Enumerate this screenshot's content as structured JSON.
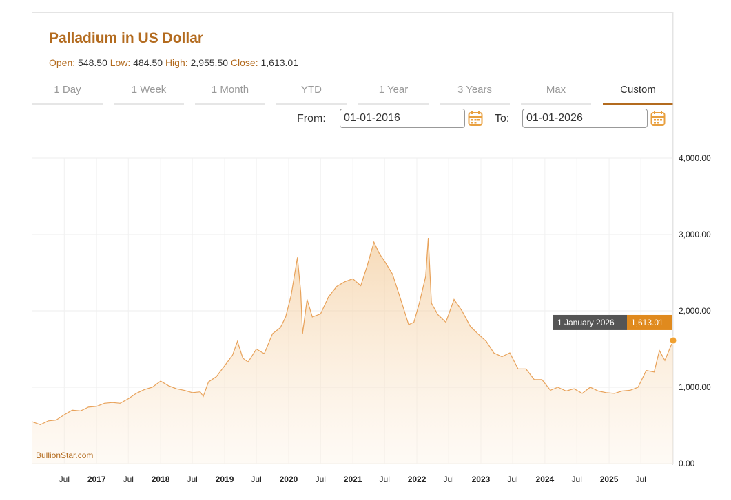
{
  "header": {
    "title": "Palladium in US Dollar",
    "open_label": "Open:",
    "open_value": "548.50",
    "low_label": "Low:",
    "low_value": "484.50",
    "high_label": "High:",
    "high_value": "2,955.50",
    "close_label": "Close:",
    "close_value": "1,613.01"
  },
  "tabs": [
    "1 Day",
    "1 Week",
    "1 Month",
    "YTD",
    "1 Year",
    "3 Years",
    "Max",
    "Custom"
  ],
  "active_tab": "Custom",
  "range": {
    "from_label": "From:",
    "from_value": "01-01-2016",
    "to_label": "To:",
    "to_value": "01-01-2026"
  },
  "tooltip": {
    "date": "1 January 2026",
    "value": "1,613.01"
  },
  "credit": "BullionStar.com",
  "colors": {
    "accent": "#b36b1f",
    "line": "#e8a25a",
    "marker": "#f0a030",
    "tooltip_value_bg": "#e08a1e",
    "tooltip_date_bg": "#555555"
  },
  "chart_data": {
    "type": "area",
    "title": "Palladium in US Dollar",
    "xlabel": "",
    "ylabel": "",
    "x_range": [
      "2016-01-01",
      "2026-01-01"
    ],
    "ylim": [
      0,
      4000
    ],
    "y_ticks": [
      "0.00",
      "1,000.00",
      "2,000.00",
      "3,000.00",
      "4,000.00"
    ],
    "y_tick_values": [
      0,
      1000,
      2000,
      3000,
      4000
    ],
    "x_ticks": [
      {
        "label": "Jul",
        "date": "2016-07-01",
        "bold": false
      },
      {
        "label": "2017",
        "date": "2017-01-01",
        "bold": true
      },
      {
        "label": "Jul",
        "date": "2017-07-01",
        "bold": false
      },
      {
        "label": "2018",
        "date": "2018-01-01",
        "bold": true
      },
      {
        "label": "Jul",
        "date": "2018-07-01",
        "bold": false
      },
      {
        "label": "2019",
        "date": "2019-01-01",
        "bold": true
      },
      {
        "label": "Jul",
        "date": "2019-07-01",
        "bold": false
      },
      {
        "label": "2020",
        "date": "2020-01-01",
        "bold": true
      },
      {
        "label": "Jul",
        "date": "2020-07-01",
        "bold": false
      },
      {
        "label": "2021",
        "date": "2021-01-01",
        "bold": true
      },
      {
        "label": "Jul",
        "date": "2021-07-01",
        "bold": false
      },
      {
        "label": "2022",
        "date": "2022-01-01",
        "bold": true
      },
      {
        "label": "Jul",
        "date": "2022-07-01",
        "bold": false
      },
      {
        "label": "2023",
        "date": "2023-01-01",
        "bold": true
      },
      {
        "label": "Jul",
        "date": "2023-07-01",
        "bold": false
      },
      {
        "label": "2024",
        "date": "2024-01-01",
        "bold": true
      },
      {
        "label": "Jul",
        "date": "2024-07-01",
        "bold": false
      },
      {
        "label": "2025",
        "date": "2025-01-01",
        "bold": true
      },
      {
        "label": "Jul",
        "date": "2025-07-01",
        "bold": false
      }
    ],
    "grid": true,
    "series": [
      {
        "x": [
          "2016-01-01",
          "2016-02-15",
          "2016-04-01",
          "2016-05-15",
          "2016-07-01",
          "2016-08-15",
          "2016-10-01",
          "2016-11-15",
          "2017-01-01",
          "2017-02-15",
          "2017-04-01",
          "2017-05-15",
          "2017-07-01",
          "2017-08-15",
          "2017-10-01",
          "2017-11-15",
          "2018-01-01",
          "2018-02-15",
          "2018-04-01",
          "2018-05-15",
          "2018-07-01",
          "2018-08-15",
          "2018-09-01",
          "2018-10-01",
          "2018-11-15",
          "2019-01-01",
          "2019-02-15",
          "2019-03-15",
          "2019-04-15",
          "2019-05-15",
          "2019-07-01",
          "2019-08-15",
          "2019-10-01",
          "2019-11-15",
          "2019-12-15",
          "2020-01-15",
          "2020-02-20",
          "2020-03-10",
          "2020-03-20",
          "2020-04-15",
          "2020-05-15",
          "2020-07-01",
          "2020-08-15",
          "2020-10-01",
          "2020-11-15",
          "2021-01-01",
          "2021-02-15",
          "2021-03-25",
          "2021-05-01",
          "2021-06-01",
          "2021-07-01",
          "2021-08-15",
          "2021-10-01",
          "2021-11-15",
          "2021-12-15",
          "2022-01-15",
          "2022-02-20",
          "2022-03-07",
          "2022-03-25",
          "2022-05-01",
          "2022-06-15",
          "2022-08-01",
          "2022-09-15",
          "2022-11-01",
          "2022-12-15",
          "2023-02-01",
          "2023-03-15",
          "2023-05-01",
          "2023-06-15",
          "2023-08-01",
          "2023-09-15",
          "2023-11-01",
          "2023-12-15",
          "2024-02-01",
          "2024-03-15",
          "2024-05-01",
          "2024-06-15",
          "2024-08-01",
          "2024-09-15",
          "2024-11-01",
          "2024-12-15",
          "2025-02-01",
          "2025-03-15",
          "2025-05-01",
          "2025-06-15",
          "2025-08-01",
          "2025-09-15",
          "2025-10-15",
          "2025-11-15",
          "2026-01-01"
        ],
        "y": [
          548,
          510,
          560,
          570,
          640,
          700,
          690,
          740,
          750,
          790,
          800,
          790,
          850,
          920,
          970,
          1000,
          1080,
          1020,
          980,
          960,
          930,
          940,
          880,
          1070,
          1140,
          1280,
          1420,
          1600,
          1380,
          1330,
          1500,
          1440,
          1700,
          1780,
          1920,
          2200,
          2700,
          2250,
          1700,
          2150,
          1920,
          1960,
          2180,
          2320,
          2380,
          2420,
          2330,
          2600,
          2900,
          2750,
          2650,
          2480,
          2150,
          1820,
          1850,
          2100,
          2450,
          2955,
          2100,
          1950,
          1850,
          2150,
          2000,
          1800,
          1700,
          1600,
          1450,
          1400,
          1450,
          1240,
          1240,
          1100,
          1100,
          960,
          1000,
          950,
          980,
          920,
          1000,
          950,
          930,
          920,
          950,
          960,
          1000,
          1220,
          1200,
          1480,
          1350,
          1613
        ]
      }
    ]
  }
}
